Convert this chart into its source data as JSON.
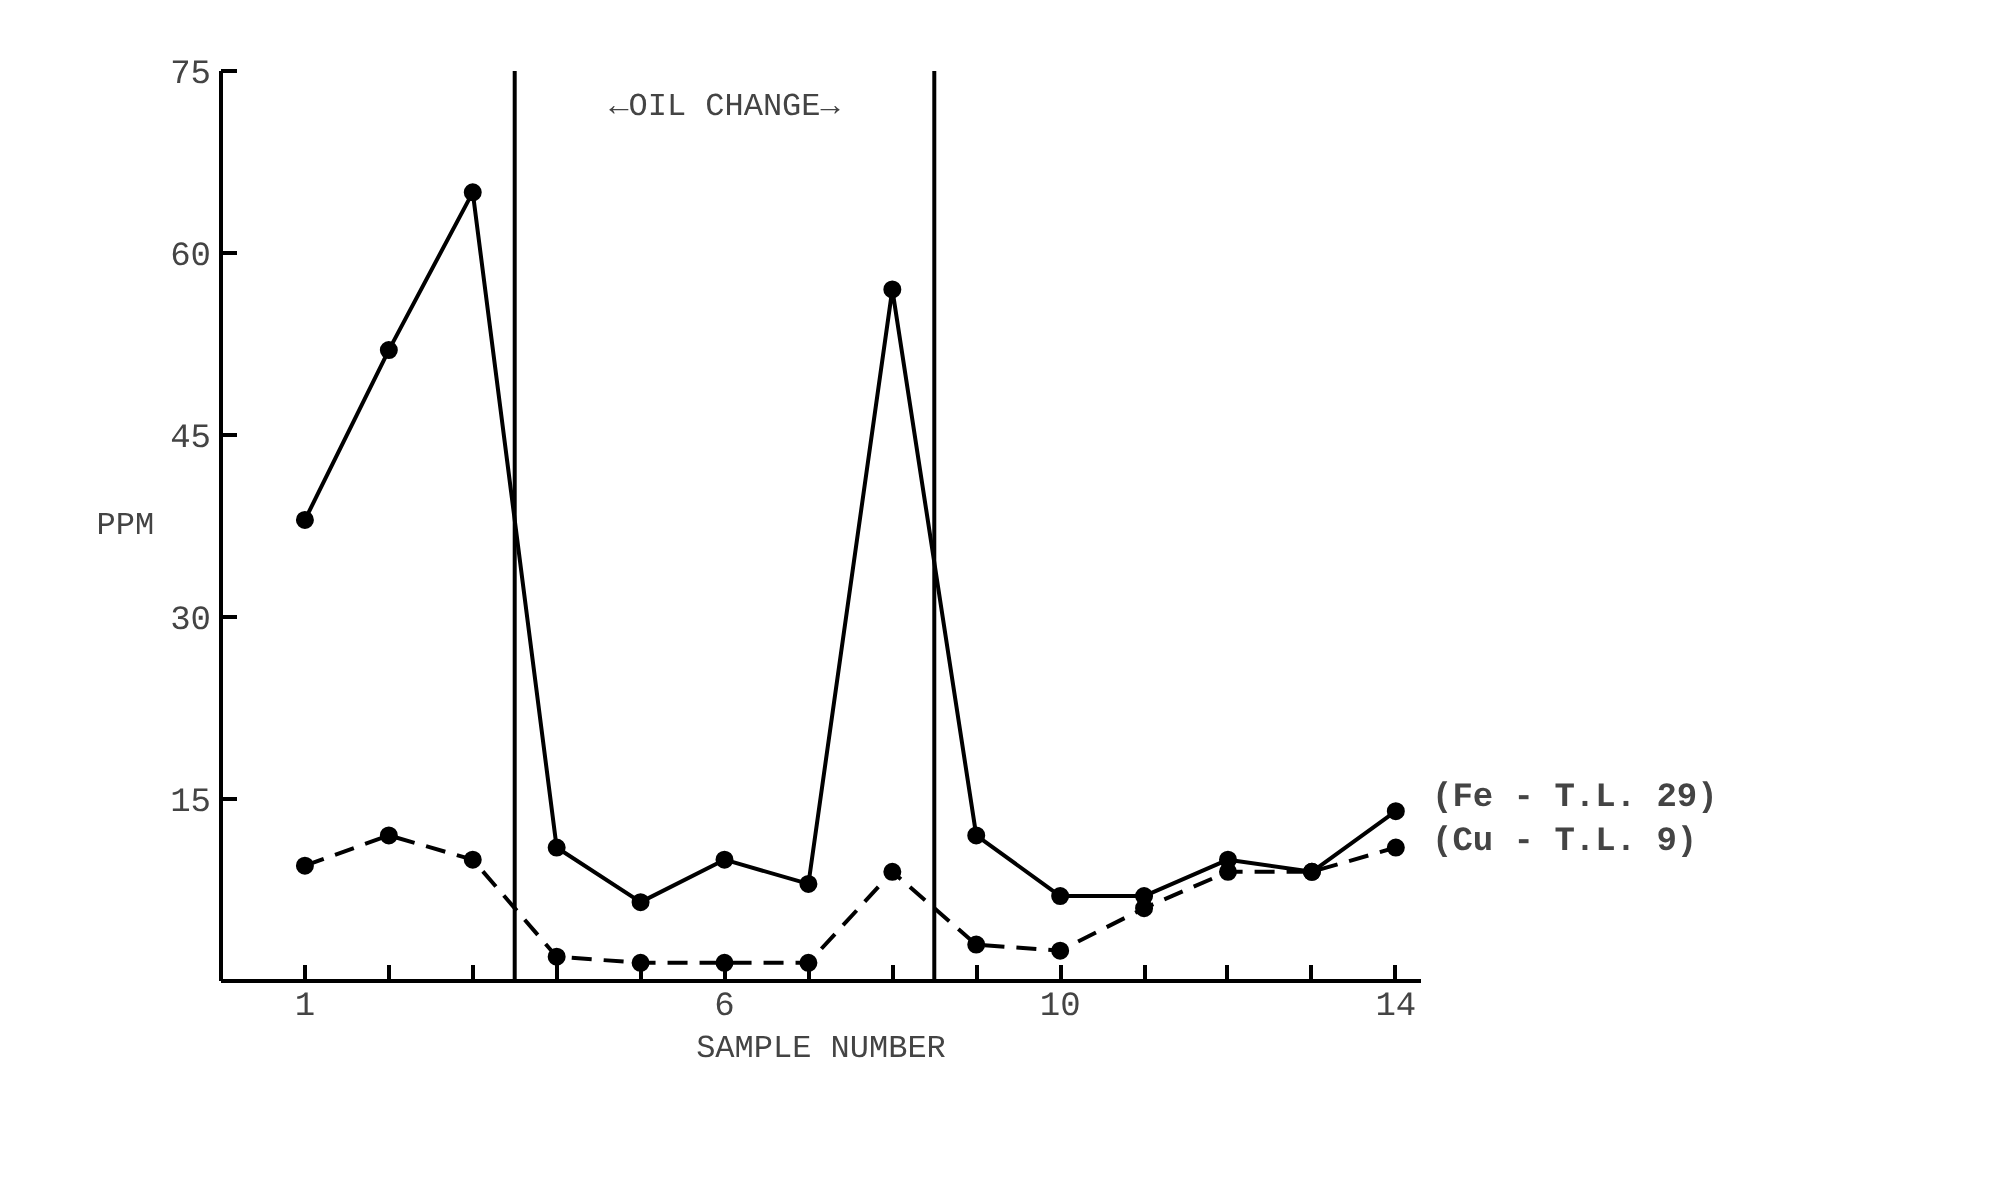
{
  "chart_data": {
    "type": "line",
    "xlabel": "SAMPLE NUMBER",
    "ylabel": "PPM",
    "x": [
      1,
      2,
      3,
      4,
      5,
      6,
      7,
      8,
      9,
      10,
      11,
      12,
      13,
      14
    ],
    "xlim": [
      0,
      14.3
    ],
    "ylim": [
      0,
      75
    ],
    "xticks": [
      1,
      {
        "value": 2,
        "label": null
      },
      {
        "value": 3,
        "label": null
      },
      {
        "value": 4,
        "label": null
      },
      {
        "value": 5,
        "label": null
      },
      6,
      {
        "value": 7,
        "label": null
      },
      {
        "value": 8,
        "label": null
      },
      {
        "value": 9,
        "label": null
      },
      10,
      {
        "value": 11,
        "label": null
      },
      {
        "value": 12,
        "label": null
      },
      {
        "value": 13,
        "label": null
      },
      14
    ],
    "yticks": [
      15,
      30,
      45,
      60,
      75
    ],
    "series": [
      {
        "name": "(Fe - T.L. 29)",
        "color": "#000000",
        "line_style": "solid",
        "values": [
          38,
          52,
          65,
          11,
          6.5,
          10,
          8,
          57,
          12,
          7,
          7,
          10,
          9,
          14
        ]
      },
      {
        "name": "(Cu - T.L. 9)",
        "color": "#000000",
        "line_style": "dashed",
        "values": [
          9.5,
          12,
          10,
          2,
          1.5,
          1.5,
          1.5,
          9,
          3,
          2.5,
          6,
          9,
          9,
          11
        ]
      }
    ],
    "ref_lines": [
      {
        "axis": "x",
        "value": 3.5,
        "label": null,
        "color": "#000000"
      },
      {
        "axis": "x",
        "value": 8.5,
        "label": null,
        "color": "#000000"
      }
    ],
    "annotations": [
      "←OIL CHANGE→"
    ],
    "marker": "circle",
    "grid": false,
    "legend": false
  }
}
